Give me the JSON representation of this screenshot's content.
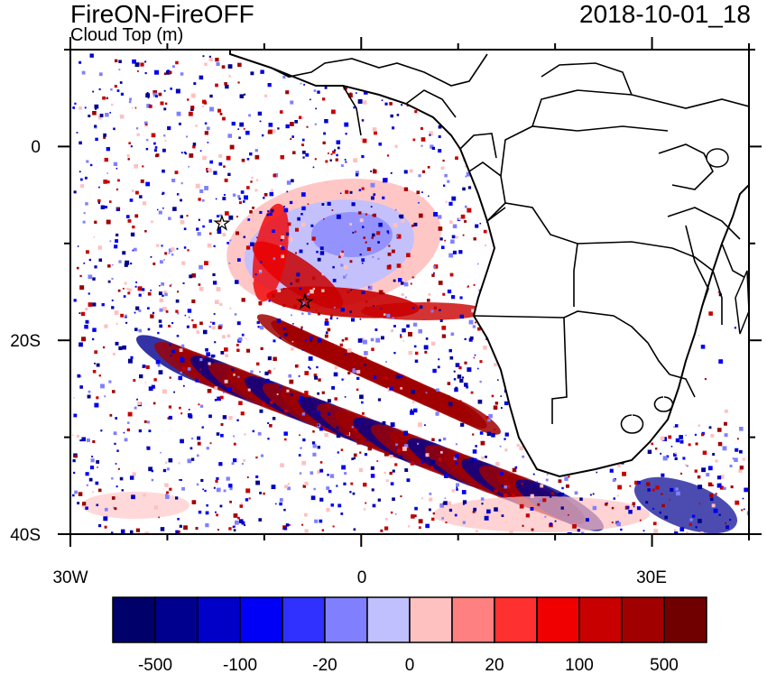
{
  "title": "FireON-FireOFF",
  "subtitle": "Cloud Top (m)",
  "timestamp": "2018-10-01_18",
  "map": {
    "lon_range": [
      -30,
      40
    ],
    "lat_range": [
      -40,
      10
    ],
    "lon_tick_labels": [
      "30W",
      "0",
      "30E"
    ],
    "lat_tick_labels": [
      "0",
      "20S",
      "40S"
    ],
    "markers": [
      "star",
      "star"
    ]
  },
  "colorbar": {
    "colors": [
      "#00006a",
      "#00008f",
      "#0000c8",
      "#0000f6",
      "#3030ff",
      "#8080ff",
      "#c0c0ff",
      "#ffc0c0",
      "#ff8080",
      "#ff3030",
      "#f00000",
      "#c80000",
      "#a00000",
      "#700000"
    ],
    "labels": [
      "-500",
      "-100",
      "-20",
      "0",
      "20",
      "100",
      "500"
    ]
  },
  "colors": {
    "land_outline": "#000000",
    "ocean": "#ffffff"
  }
}
